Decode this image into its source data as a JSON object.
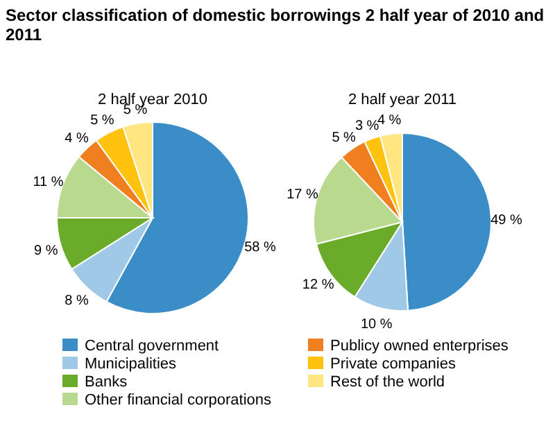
{
  "chart_data": [
    {
      "type": "pie",
      "title": "Sector classification of domestic borrowings 2 half year of 2010 and 2011",
      "subtitle": "2 half year 2010",
      "categories": [
        "Central government",
        "Municipalities",
        "Banks",
        "Other financial corporations",
        "Publicy owned enterprises",
        "Private companies",
        "Rest of the world"
      ],
      "values": [
        58,
        8,
        9,
        11,
        4,
        5,
        5
      ],
      "value_labels": [
        "58 %",
        "8 %",
        "9 %",
        "11 %",
        "4 %",
        "5 %",
        "5 %"
      ],
      "colors": [
        "#3a8dc6",
        "#9fc9e6",
        "#6aab2a",
        "#b9d98f",
        "#f07f1f",
        "#ffc20e",
        "#ffe680"
      ],
      "legend": "bottom"
    },
    {
      "type": "pie",
      "subtitle": "2 half year 2011",
      "categories": [
        null,
        null,
        null,
        null,
        null,
        null,
        null
      ],
      "values": [
        49,
        10,
        12,
        17,
        5,
        3,
        4
      ],
      "value_labels": [
        "49 %",
        "10 %",
        "12 %",
        "17 %",
        "5 %",
        "3 %",
        "4 %"
      ],
      "colors": [
        "#3a8dc6",
        "#9fc9e6",
        "#6aab2a",
        "#b9d98f",
        "#f07f1f",
        "#ffc20e",
        "#ffe680"
      ]
    }
  ]
}
